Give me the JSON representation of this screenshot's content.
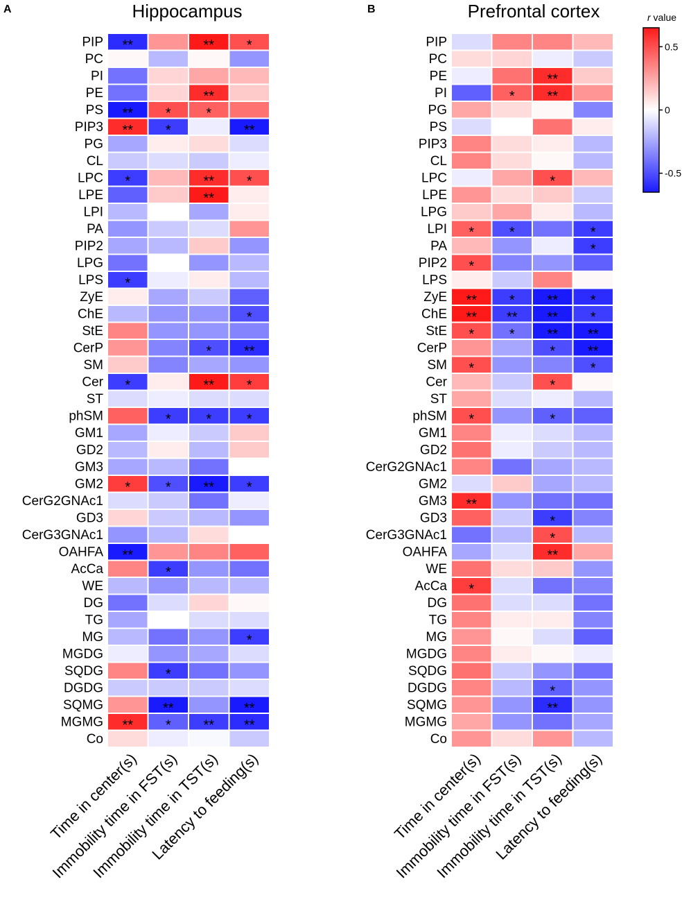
{
  "chart_data": [
    {
      "type": "heatmap",
      "panel_label": "A",
      "title": "Hippocampus",
      "columns": [
        "Time in center(s)",
        "Immobility time in FST(s)",
        "Immobility time in TST(s)",
        "Latency to feeding(s)"
      ],
      "rows": [
        "PIP",
        "PC",
        "PI",
        "PE",
        "PS",
        "PIP3",
        "PG",
        "CL",
        "LPC",
        "LPE",
        "LPI",
        "PA",
        "PIP2",
        "LPG",
        "LPS",
        "ZyE",
        "ChE",
        "StE",
        "CerP",
        "SM",
        "Cer",
        "ST",
        "phSM",
        "GM1",
        "GD2",
        "GM3",
        "GM2",
        "CerG2GNAc1",
        "GD3",
        "CerG3GNAc1",
        "OAHFA",
        "AcCa",
        "WE",
        "DG",
        "TG",
        "MG",
        "MGDG",
        "SQDG",
        "DGDG",
        "SQMG",
        "MGMG",
        "Co"
      ],
      "values": [
        [
          -0.6,
          0.3,
          0.65,
          0.5
        ],
        [
          0.02,
          -0.2,
          0.02,
          -0.3
        ],
        [
          -0.4,
          0.12,
          0.25,
          0.2
        ],
        [
          -0.4,
          0.12,
          0.6,
          0.15
        ],
        [
          -0.7,
          0.5,
          0.45,
          0.4
        ],
        [
          0.6,
          -0.55,
          -0.05,
          -0.65
        ],
        [
          -0.25,
          0.05,
          0.1,
          -0.1
        ],
        [
          -0.15,
          -0.1,
          -0.15,
          -0.05
        ],
        [
          -0.55,
          0.2,
          0.6,
          0.5
        ],
        [
          -0.45,
          0.15,
          0.65,
          0.05
        ],
        [
          -0.2,
          0.0,
          -0.25,
          0.05
        ],
        [
          -0.3,
          -0.15,
          -0.1,
          0.3
        ],
        [
          -0.25,
          -0.2,
          0.15,
          -0.3
        ],
        [
          -0.4,
          0.0,
          -0.3,
          -0.2
        ],
        [
          -0.55,
          -0.05,
          0.05,
          -0.2
        ],
        [
          0.05,
          -0.25,
          -0.15,
          -0.45
        ],
        [
          -0.2,
          -0.3,
          -0.3,
          -0.5
        ],
        [
          0.35,
          -0.3,
          -0.3,
          -0.35
        ],
        [
          0.3,
          -0.35,
          -0.5,
          -0.6
        ],
        [
          0.15,
          -0.35,
          -0.25,
          -0.3
        ],
        [
          -0.55,
          0.05,
          0.65,
          0.55
        ],
        [
          -0.1,
          -0.05,
          -0.1,
          -0.1
        ],
        [
          0.45,
          -0.55,
          -0.55,
          -0.55
        ],
        [
          -0.25,
          -0.05,
          -0.15,
          0.15
        ],
        [
          -0.2,
          0.05,
          -0.2,
          0.15
        ],
        [
          -0.25,
          -0.2,
          -0.4,
          0.0
        ],
        [
          0.55,
          -0.5,
          -0.7,
          -0.55
        ],
        [
          -0.1,
          -0.15,
          -0.4,
          -0.05
        ],
        [
          0.12,
          -0.15,
          -0.2,
          -0.3
        ],
        [
          -0.3,
          -0.2,
          0.1,
          0.0
        ],
        [
          -0.7,
          0.3,
          0.35,
          0.45
        ],
        [
          0.35,
          -0.55,
          -0.3,
          -0.4
        ],
        [
          -0.2,
          -0.3,
          -0.2,
          -0.2
        ],
        [
          -0.4,
          -0.1,
          0.12,
          0.02
        ],
        [
          -0.25,
          0.0,
          -0.1,
          -0.1
        ],
        [
          -0.2,
          -0.4,
          -0.3,
          -0.55
        ],
        [
          -0.05,
          -0.3,
          -0.25,
          -0.1
        ],
        [
          0.35,
          -0.55,
          -0.4,
          -0.3
        ],
        [
          -0.15,
          -0.15,
          -0.15,
          -0.1
        ],
        [
          0.3,
          -0.7,
          -0.3,
          -0.65
        ],
        [
          0.6,
          -0.45,
          -0.55,
          -0.6
        ],
        [
          0.1,
          -0.05,
          -0.02,
          -0.15
        ]
      ],
      "significance": [
        [
          "**",
          "",
          "**",
          "*"
        ],
        [
          "",
          "",
          "",
          ""
        ],
        [
          "",
          "",
          "",
          ""
        ],
        [
          "",
          "",
          "**",
          ""
        ],
        [
          "**",
          "*",
          "*",
          ""
        ],
        [
          "**",
          "*",
          "",
          "**"
        ],
        [
          "",
          "",
          "",
          ""
        ],
        [
          "",
          "",
          "",
          ""
        ],
        [
          "*",
          "",
          "**",
          "*"
        ],
        [
          "",
          "",
          "**",
          ""
        ],
        [
          "",
          "",
          "",
          ""
        ],
        [
          "",
          "",
          "",
          ""
        ],
        [
          "",
          "",
          "",
          ""
        ],
        [
          "",
          "",
          "",
          ""
        ],
        [
          "*",
          "",
          "",
          ""
        ],
        [
          "",
          "",
          "",
          ""
        ],
        [
          "",
          "",
          "",
          "*"
        ],
        [
          "",
          "",
          "",
          ""
        ],
        [
          "",
          "",
          "*",
          "**"
        ],
        [
          "",
          "",
          "",
          ""
        ],
        [
          "*",
          "",
          "**",
          "*"
        ],
        [
          "",
          "",
          "",
          ""
        ],
        [
          "",
          "*",
          "*",
          "*"
        ],
        [
          "",
          "",
          "",
          ""
        ],
        [
          "",
          "",
          "",
          ""
        ],
        [
          "",
          "",
          "",
          ""
        ],
        [
          "*",
          "*",
          "**",
          "*"
        ],
        [
          "",
          "",
          "",
          ""
        ],
        [
          "",
          "",
          "",
          ""
        ],
        [
          "",
          "",
          "",
          ""
        ],
        [
          "**",
          "",
          "",
          ""
        ],
        [
          "",
          "*",
          "",
          ""
        ],
        [
          "",
          "",
          "",
          ""
        ],
        [
          "",
          "",
          "",
          ""
        ],
        [
          "",
          "",
          "",
          ""
        ],
        [
          "",
          "",
          "",
          "*"
        ],
        [
          "",
          "",
          "",
          ""
        ],
        [
          "",
          "*",
          "",
          ""
        ],
        [
          "",
          "",
          "",
          ""
        ],
        [
          "",
          "**",
          "",
          "**"
        ],
        [
          "**",
          "*",
          "**",
          "**"
        ],
        [
          "",
          "",
          "",
          ""
        ]
      ]
    },
    {
      "type": "heatmap",
      "panel_label": "B",
      "title": "Prefrontal cortex",
      "columns": [
        "Time in center(s)",
        "Immobility time in FST(s)",
        "Immobility time in TST(s)",
        "Latency to feeding(s)"
      ],
      "rows": [
        "PIP",
        "PC",
        "PE",
        "PI",
        "PG",
        "PS",
        "PIP3",
        "CL",
        "LPC",
        "LPE",
        "LPG",
        "LPI",
        "PA",
        "PIP2",
        "LPS",
        "ZyE",
        "ChE",
        "StE",
        "CerP",
        "SM",
        "Cer",
        "ST",
        "phSM",
        "GM1",
        "GD2",
        "CerG2GNAc1",
        "GM2",
        "GM3",
        "GD3",
        "CerG3GNAc1",
        "OAHFA",
        "WE",
        "AcCa",
        "DG",
        "TG",
        "MG",
        "MGDG",
        "SQDG",
        "DGDG",
        "SQMG",
        "MGMG",
        "Co"
      ],
      "values": [
        [
          -0.1,
          0.35,
          0.35,
          0.2
        ],
        [
          0.1,
          0.12,
          -0.05,
          -0.15
        ],
        [
          -0.05,
          0.4,
          0.6,
          0.15
        ],
        [
          -0.45,
          0.45,
          0.6,
          0.3
        ],
        [
          0.25,
          0.1,
          0.02,
          -0.35
        ],
        [
          -0.1,
          0.0,
          0.4,
          0.05
        ],
        [
          0.35,
          0.1,
          0.05,
          -0.2
        ],
        [
          0.35,
          0.1,
          0.02,
          -0.2
        ],
        [
          -0.05,
          0.25,
          0.5,
          0.2
        ],
        [
          0.3,
          0.1,
          0.15,
          -0.15
        ],
        [
          0.15,
          0.25,
          0.05,
          -0.2
        ],
        [
          0.45,
          -0.5,
          -0.4,
          -0.55
        ],
        [
          0.2,
          -0.3,
          -0.05,
          -0.55
        ],
        [
          0.5,
          -0.35,
          -0.3,
          -0.45
        ],
        [
          0.05,
          -0.15,
          0.35,
          0.02
        ],
        [
          0.65,
          -0.55,
          -0.65,
          -0.6
        ],
        [
          0.65,
          -0.55,
          -0.65,
          -0.55
        ],
        [
          0.5,
          -0.4,
          -0.65,
          -0.65
        ],
        [
          0.3,
          -0.25,
          -0.5,
          -0.65
        ],
        [
          0.5,
          -0.3,
          -0.35,
          -0.5
        ],
        [
          0.2,
          -0.15,
          0.5,
          0.02
        ],
        [
          0.25,
          -0.1,
          -0.05,
          -0.2
        ],
        [
          0.5,
          -0.3,
          -0.45,
          -0.45
        ],
        [
          0.35,
          -0.05,
          -0.1,
          -0.2
        ],
        [
          0.4,
          -0.05,
          -0.15,
          -0.2
        ],
        [
          0.35,
          -0.4,
          -0.25,
          -0.2
        ],
        [
          -0.1,
          0.15,
          -0.25,
          -0.2
        ],
        [
          0.6,
          -0.3,
          -0.4,
          -0.4
        ],
        [
          0.45,
          -0.15,
          -0.55,
          -0.35
        ],
        [
          -0.4,
          -0.2,
          0.5,
          -0.2
        ],
        [
          -0.25,
          -0.1,
          0.6,
          0.25
        ],
        [
          0.4,
          0.1,
          0.15,
          -0.3
        ],
        [
          0.55,
          -0.1,
          -0.4,
          -0.35
        ],
        [
          0.4,
          -0.1,
          -0.1,
          -0.4
        ],
        [
          0.35,
          0.05,
          0.05,
          -0.35
        ],
        [
          0.3,
          0.02,
          -0.1,
          -0.45
        ],
        [
          0.35,
          0.05,
          0.02,
          -0.05
        ],
        [
          0.4,
          -0.15,
          -0.3,
          -0.4
        ],
        [
          0.35,
          -0.2,
          -0.45,
          -0.3
        ],
        [
          0.3,
          -0.3,
          -0.6,
          -0.3
        ],
        [
          0.25,
          -0.3,
          -0.4,
          -0.25
        ],
        [
          0.3,
          0.1,
          0.3,
          -0.2
        ]
      ],
      "significance": [
        [
          "",
          "",
          "",
          ""
        ],
        [
          "",
          "",
          "",
          ""
        ],
        [
          "",
          "",
          "**",
          ""
        ],
        [
          "",
          "*",
          "**",
          ""
        ],
        [
          "",
          "",
          "",
          ""
        ],
        [
          "",
          "",
          "",
          ""
        ],
        [
          "",
          "",
          "",
          ""
        ],
        [
          "",
          "",
          "",
          ""
        ],
        [
          "",
          "",
          "*",
          ""
        ],
        [
          "",
          "",
          "",
          ""
        ],
        [
          "",
          "",
          "",
          ""
        ],
        [
          "*",
          "*",
          "",
          "*"
        ],
        [
          "",
          "",
          "",
          "*"
        ],
        [
          "*",
          "",
          "",
          ""
        ],
        [
          "",
          "",
          "",
          ""
        ],
        [
          "**",
          "*",
          "**",
          "*"
        ],
        [
          "**",
          "**",
          "**",
          "*"
        ],
        [
          "*",
          "*",
          "**",
          "**"
        ],
        [
          "",
          "",
          "*",
          "**"
        ],
        [
          "*",
          "",
          "",
          "*"
        ],
        [
          "",
          "",
          "*",
          ""
        ],
        [
          "",
          "",
          "",
          ""
        ],
        [
          "*",
          "",
          "*",
          ""
        ],
        [
          "",
          "",
          "",
          ""
        ],
        [
          "",
          "",
          "",
          ""
        ],
        [
          "",
          "",
          "",
          ""
        ],
        [
          "",
          "",
          "",
          ""
        ],
        [
          "**",
          "",
          "",
          ""
        ],
        [
          "",
          "",
          "*",
          ""
        ],
        [
          "",
          "",
          "*",
          ""
        ],
        [
          "",
          "",
          "**",
          ""
        ],
        [
          "",
          "",
          "",
          ""
        ],
        [
          "*",
          "",
          "",
          ""
        ],
        [
          "",
          "",
          "",
          ""
        ],
        [
          "",
          "",
          "",
          ""
        ],
        [
          "",
          "",
          "",
          ""
        ],
        [
          "",
          "",
          "",
          ""
        ],
        [
          "",
          "",
          "",
          ""
        ],
        [
          "",
          "",
          "*",
          ""
        ],
        [
          "",
          "",
          "**",
          ""
        ],
        [
          "",
          "",
          "",
          ""
        ],
        [
          "",
          "",
          "",
          ""
        ]
      ]
    }
  ],
  "colorbar": {
    "title_italic": "r",
    "title_rest": " value",
    "ticks": [
      {
        "value": 0.5,
        "label": "0.5"
      },
      {
        "value": 0,
        "label": "0"
      },
      {
        "value": -0.5,
        "label": "-0.5"
      }
    ],
    "range": [
      -0.65,
      0.65
    ]
  },
  "colors": {
    "negative": "#1a1aff",
    "neutral": "#ffffff",
    "positive": "#ff1a1a",
    "grid": "#ffffff",
    "text": "#000000"
  }
}
